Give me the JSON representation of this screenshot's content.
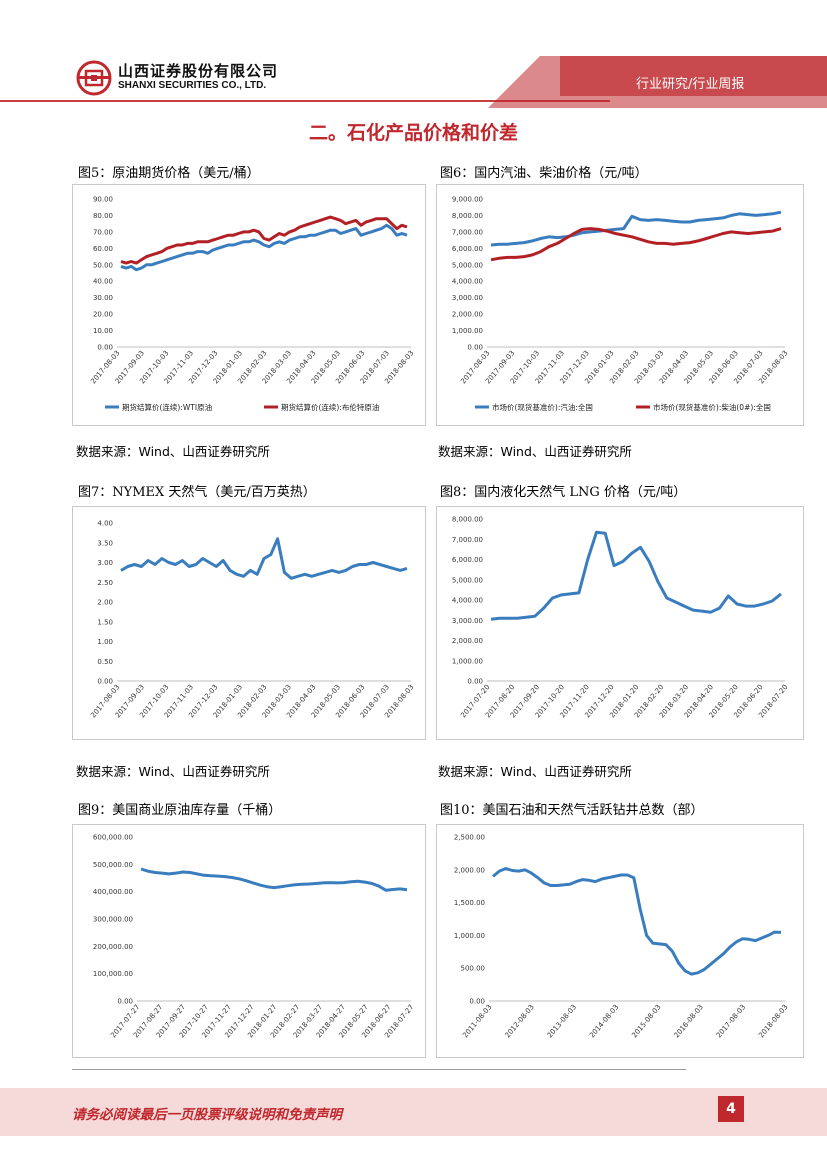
{
  "header": {
    "company_cn": "山西证券股份有限公司",
    "company_en": "SHANXI SECURITIES CO., LTD.",
    "tag": "行业研究/行业周报"
  },
  "section_title": "二。石化产品价格和价差",
  "colors": {
    "accent": "#c0282d",
    "blue": "#3a7dbf",
    "red": "#b22025"
  },
  "figures": [
    {
      "title": "图5：原油期货价格（美元/桶）",
      "source": "数据来源：Wind、山西证券研究所"
    },
    {
      "title": "图6：国内汽油、柴油价格（元/吨）",
      "source": "数据来源：Wind、山西证券研究所"
    },
    {
      "title": "图7：NYMEX 天然气（美元/百万英热）",
      "source": "数据来源：Wind、山西证券研究所"
    },
    {
      "title": "图8：国内液化天然气 LNG 价格（元/吨）",
      "source": "数据来源：Wind、山西证券研究所"
    },
    {
      "title": "图9：美国商业原油库存量（千桶）"
    },
    {
      "title": "图10：美国石油和天然气活跃钻井总数（部）"
    }
  ],
  "chart_data": [
    {
      "id": "fig5",
      "type": "line",
      "yticks": [
        "0.00",
        "10.00",
        "20.00",
        "30.00",
        "40.00",
        "50.00",
        "60.00",
        "70.00",
        "80.00",
        "90.00"
      ],
      "ylim": [
        0,
        90
      ],
      "xticks": [
        "2017-08-03",
        "2017-09-03",
        "2017-10-03",
        "2017-11-03",
        "2017-12-03",
        "2018-01-03",
        "2018-02-03",
        "2018-03-03",
        "2018-04-03",
        "2018-05-03",
        "2018-06-03",
        "2018-07-03",
        "2018-08-03"
      ],
      "series": [
        {
          "name": "期货结算价(连续):WTI原油",
          "color": "#3a7dbf",
          "values": [
            49,
            48,
            49,
            47,
            48,
            50,
            50,
            51,
            52,
            53,
            54,
            55,
            56,
            57,
            57,
            58,
            58,
            57,
            59,
            60,
            61,
            62,
            62,
            63,
            64,
            64,
            65,
            64,
            62,
            61,
            63,
            64,
            63,
            65,
            66,
            67,
            67,
            68,
            68,
            69,
            70,
            71,
            71,
            69,
            70,
            71,
            72,
            68,
            69,
            70,
            71,
            72,
            74,
            72,
            68,
            69,
            68
          ]
        },
        {
          "name": "期货结算价(连续):布伦特原油",
          "color": "#b22025",
          "values": [
            52,
            51,
            52,
            51,
            53,
            55,
            56,
            57,
            58,
            60,
            61,
            62,
            62,
            63,
            63,
            64,
            64,
            64,
            65,
            66,
            67,
            68,
            68,
            69,
            70,
            70,
            71,
            70,
            66,
            65,
            67,
            69,
            68,
            70,
            71,
            73,
            74,
            75,
            76,
            77,
            78,
            79,
            78,
            77,
            75,
            76,
            77,
            74,
            76,
            77,
            78,
            78,
            78,
            75,
            72,
            74,
            73
          ]
        }
      ]
    },
    {
      "id": "fig6",
      "type": "line",
      "yticks": [
        "0.00",
        "1,000.00",
        "2,000.00",
        "3,000.00",
        "4,000.00",
        "5,000.00",
        "6,000.00",
        "7,000.00",
        "8,000.00",
        "9,000.00"
      ],
      "ylim": [
        0,
        9000
      ],
      "xticks": [
        "2017-08-03",
        "2017-09-03",
        "2017-10-03",
        "2017-11-03",
        "2017-12-03",
        "2018-01-03",
        "2018-02-03",
        "2018-03-03",
        "2018-04-03",
        "2018-05-03",
        "2018-06-03",
        "2018-07-03",
        "2018-08-03"
      ],
      "series": [
        {
          "name": "市场价(现货基准价):汽油:全国",
          "color": "#3a7dbf",
          "values": [
            6200,
            6250,
            6250,
            6300,
            6350,
            6450,
            6600,
            6700,
            6650,
            6700,
            6800,
            6950,
            7000,
            7050,
            7100,
            7150,
            7200,
            7950,
            7750,
            7700,
            7750,
            7700,
            7650,
            7600,
            7600,
            7700,
            7750,
            7800,
            7850,
            8000,
            8100,
            8050,
            8000,
            8050,
            8100,
            8200
          ]
        },
        {
          "name": "市场价(现货基准价):柴油(0#):全国",
          "color": "#b22025",
          "values": [
            5300,
            5400,
            5450,
            5450,
            5500,
            5600,
            5800,
            6100,
            6300,
            6600,
            6900,
            7150,
            7200,
            7150,
            7050,
            6900,
            6800,
            6700,
            6550,
            6400,
            6300,
            6300,
            6250,
            6300,
            6350,
            6450,
            6600,
            6750,
            6900,
            7000,
            6950,
            6900,
            6950,
            7000,
            7050,
            7200
          ]
        }
      ]
    },
    {
      "id": "fig7",
      "type": "line",
      "yticks": [
        "0.00",
        "0.50",
        "1.00",
        "1.50",
        "2.00",
        "2.50",
        "3.00",
        "3.50",
        "4.00"
      ],
      "ylim": [
        0,
        4
      ],
      "xticks": [
        "2017-08-03",
        "2017-09-03",
        "2017-10-03",
        "2017-11-03",
        "2017-12-03",
        "2018-01-03",
        "2018-02-03",
        "2018-03-03",
        "2018-04-03",
        "2018-05-03",
        "2018-06-03",
        "2018-07-03",
        "2018-08-03"
      ],
      "series": [
        {
          "name": "NYMEX 天然气",
          "color": "#3a7dbf",
          "values": [
            2.8,
            2.9,
            2.95,
            2.9,
            3.05,
            2.95,
            3.1,
            3.0,
            2.95,
            3.05,
            2.9,
            2.95,
            3.1,
            3.0,
            2.9,
            3.05,
            2.8,
            2.7,
            2.65,
            2.8,
            2.7,
            3.1,
            3.2,
            3.6,
            2.75,
            2.6,
            2.65,
            2.7,
            2.65,
            2.7,
            2.75,
            2.8,
            2.75,
            2.8,
            2.9,
            2.95,
            2.95,
            3.0,
            2.95,
            2.9,
            2.85,
            2.8,
            2.85
          ]
        }
      ]
    },
    {
      "id": "fig8",
      "type": "line",
      "yticks": [
        "0.00",
        "1,000.00",
        "2,000.00",
        "3,000.00",
        "4,000.00",
        "5,000.00",
        "6,000.00",
        "7,000.00",
        "8,000.00"
      ],
      "ylim": [
        0,
        8000
      ],
      "xticks": [
        "2017-07-20",
        "2017-08-20",
        "2017-09-20",
        "2017-10-20",
        "2017-11-20",
        "2017-12-20",
        "2018-01-20",
        "2018-02-20",
        "2018-03-20",
        "2018-04-20",
        "2018-05-20",
        "2018-06-20",
        "2018-07-20"
      ],
      "series": [
        {
          "name": "国内液化天然气 LNG 价格",
          "color": "#3a7dbf",
          "values": [
            3050,
            3100,
            3100,
            3100,
            3150,
            3200,
            3600,
            4100,
            4250,
            4300,
            4350,
            6000,
            7350,
            7300,
            5700,
            5900,
            6300,
            6600,
            5900,
            4900,
            4100,
            3900,
            3700,
            3500,
            3450,
            3400,
            3600,
            4200,
            3800,
            3700,
            3700,
            3800,
            3950,
            4300
          ]
        }
      ]
    },
    {
      "id": "fig9",
      "type": "line",
      "yticks": [
        "0.00",
        "100,000.00",
        "200,000.00",
        "300,000.00",
        "400,000.00",
        "500,000.00",
        "600,000.00"
      ],
      "ylim": [
        0,
        600000
      ],
      "xticks": [
        "2017-07-27",
        "2017-08-27",
        "2017-09-27",
        "2017-10-27",
        "2017-11-27",
        "2017-12-27",
        "2018-01-27",
        "2018-02-27",
        "2018-03-27",
        "2018-04-27",
        "2018-05-27",
        "2018-06-27",
        "2018-07-27"
      ],
      "series": [
        {
          "name": "美国商业原油库存量",
          "color": "#3a7dbf",
          "values": [
            483000,
            475000,
            470000,
            468000,
            465000,
            468000,
            472000,
            470000,
            465000,
            460000,
            458000,
            457000,
            455000,
            452000,
            447000,
            440000,
            432000,
            424000,
            418000,
            415000,
            418000,
            422000,
            425000,
            427000,
            428000,
            430000,
            432000,
            433000,
            432000,
            433000,
            436000,
            438000,
            435000,
            430000,
            420000,
            405000,
            408000,
            410000,
            407000
          ]
        }
      ]
    },
    {
      "id": "fig10",
      "type": "line",
      "yticks": [
        "0.00",
        "500.00",
        "1,000.00",
        "1,500.00",
        "2,000.00",
        "2,500.00"
      ],
      "ylim": [
        0,
        2500
      ],
      "xticks": [
        "2011-08-03",
        "2012-08-03",
        "2013-08-03",
        "2014-08-03",
        "2015-08-03",
        "2016-08-03",
        "2017-08-03",
        "2018-08-03"
      ],
      "series": [
        {
          "name": "美国石油和天然气活跃钻井总数",
          "color": "#3a7dbf",
          "values": [
            1900,
            1980,
            2020,
            1990,
            1980,
            2000,
            1950,
            1880,
            1800,
            1760,
            1760,
            1770,
            1780,
            1820,
            1850,
            1840,
            1820,
            1860,
            1880,
            1900,
            1920,
            1920,
            1880,
            1400,
            1000,
            880,
            870,
            860,
            760,
            580,
            460,
            410,
            430,
            480,
            560,
            640,
            720,
            820,
            900,
            950,
            940,
            920,
            960,
            1000,
            1050,
            1045
          ]
        }
      ]
    }
  ],
  "footer": {
    "disclaimer": "请务必阅读最后一页股票评级说明和免责声明",
    "page": "4"
  }
}
